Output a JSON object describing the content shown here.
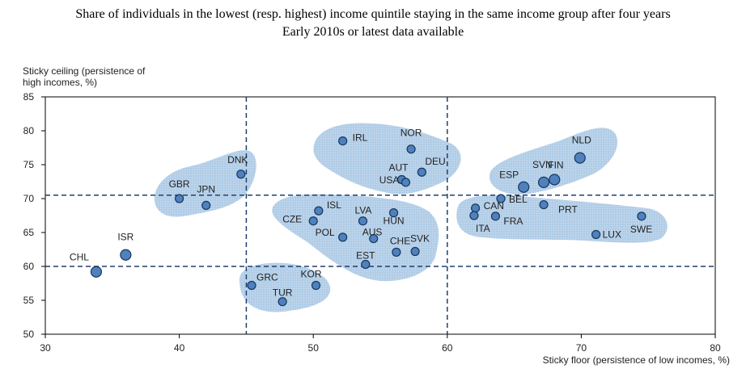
{
  "chart_data": {
    "type": "scatter",
    "title": "Share of individuals in the lowest (resp. highest) income quintile staying in the same income group after four years",
    "subtitle": "Early 2010s or latest data available",
    "xlabel": "Sticky floor (persistence of low incomes, %)",
    "ylabel_lines": [
      "Sticky ceiling (persistence of",
      "high incomes, %)"
    ],
    "xlim": [
      30,
      80
    ],
    "ylim": [
      50,
      85
    ],
    "xticks": [
      30,
      40,
      50,
      60,
      70,
      80
    ],
    "yticks": [
      50,
      55,
      60,
      65,
      70,
      75,
      80,
      85
    ],
    "reference_lines": {
      "x": [
        45,
        60
      ],
      "y": [
        60,
        70.5
      ]
    },
    "colors": {
      "point": "#4f81bd",
      "point_edge": "#17375e",
      "cluster": "#aecbe6",
      "ref_line": "#1f3f6e"
    },
    "points": [
      {
        "label": "CHL",
        "x": 33.8,
        "y": 59.2,
        "size": "large"
      },
      {
        "label": "ISR",
        "x": 36.0,
        "y": 61.7,
        "size": "large"
      },
      {
        "label": "GBR",
        "x": 40.0,
        "y": 70.0
      },
      {
        "label": "JPN",
        "x": 42.0,
        "y": 69.0
      },
      {
        "label": "DNK",
        "x": 44.6,
        "y": 73.6
      },
      {
        "label": "GRC",
        "x": 45.4,
        "y": 57.2
      },
      {
        "label": "TUR",
        "x": 47.7,
        "y": 54.8
      },
      {
        "label": "KOR",
        "x": 50.2,
        "y": 57.2
      },
      {
        "label": "CZE",
        "x": 50.0,
        "y": 66.7
      },
      {
        "label": "ISL",
        "x": 50.4,
        "y": 68.2
      },
      {
        "label": "POL",
        "x": 52.2,
        "y": 64.3
      },
      {
        "label": "LVA",
        "x": 53.7,
        "y": 66.7
      },
      {
        "label": "AUS",
        "x": 54.5,
        "y": 64.1
      },
      {
        "label": "EST",
        "x": 53.9,
        "y": 60.3
      },
      {
        "label": "HUN",
        "x": 56.0,
        "y": 67.9
      },
      {
        "label": "CHE",
        "x": 56.2,
        "y": 62.1
      },
      {
        "label": "SVK",
        "x": 57.6,
        "y": 62.2
      },
      {
        "label": "IRL",
        "x": 52.2,
        "y": 78.5
      },
      {
        "label": "NOR",
        "x": 57.3,
        "y": 77.3
      },
      {
        "label": "AUT",
        "x": 56.6,
        "y": 72.8
      },
      {
        "label": "USA",
        "x": 56.9,
        "y": 72.4
      },
      {
        "label": "DEU",
        "x": 58.1,
        "y": 73.9
      },
      {
        "label": "CAN",
        "x": 62.1,
        "y": 68.6
      },
      {
        "label": "ITA",
        "x": 62.0,
        "y": 67.5
      },
      {
        "label": "BEL",
        "x": 64.0,
        "y": 70.0
      },
      {
        "label": "FRA",
        "x": 63.6,
        "y": 67.4
      },
      {
        "label": "ESP",
        "x": 65.7,
        "y": 71.7,
        "size": "large"
      },
      {
        "label": "SVN",
        "x": 67.2,
        "y": 72.4,
        "size": "large"
      },
      {
        "label": "FIN",
        "x": 68.0,
        "y": 72.8,
        "size": "large"
      },
      {
        "label": "PRT",
        "x": 67.2,
        "y": 69.1
      },
      {
        "label": "NLD",
        "x": 69.9,
        "y": 76.0,
        "size": "large"
      },
      {
        "label": "LUX",
        "x": 71.1,
        "y": 64.7
      },
      {
        "label": "SWE",
        "x": 74.5,
        "y": 67.4
      }
    ]
  }
}
